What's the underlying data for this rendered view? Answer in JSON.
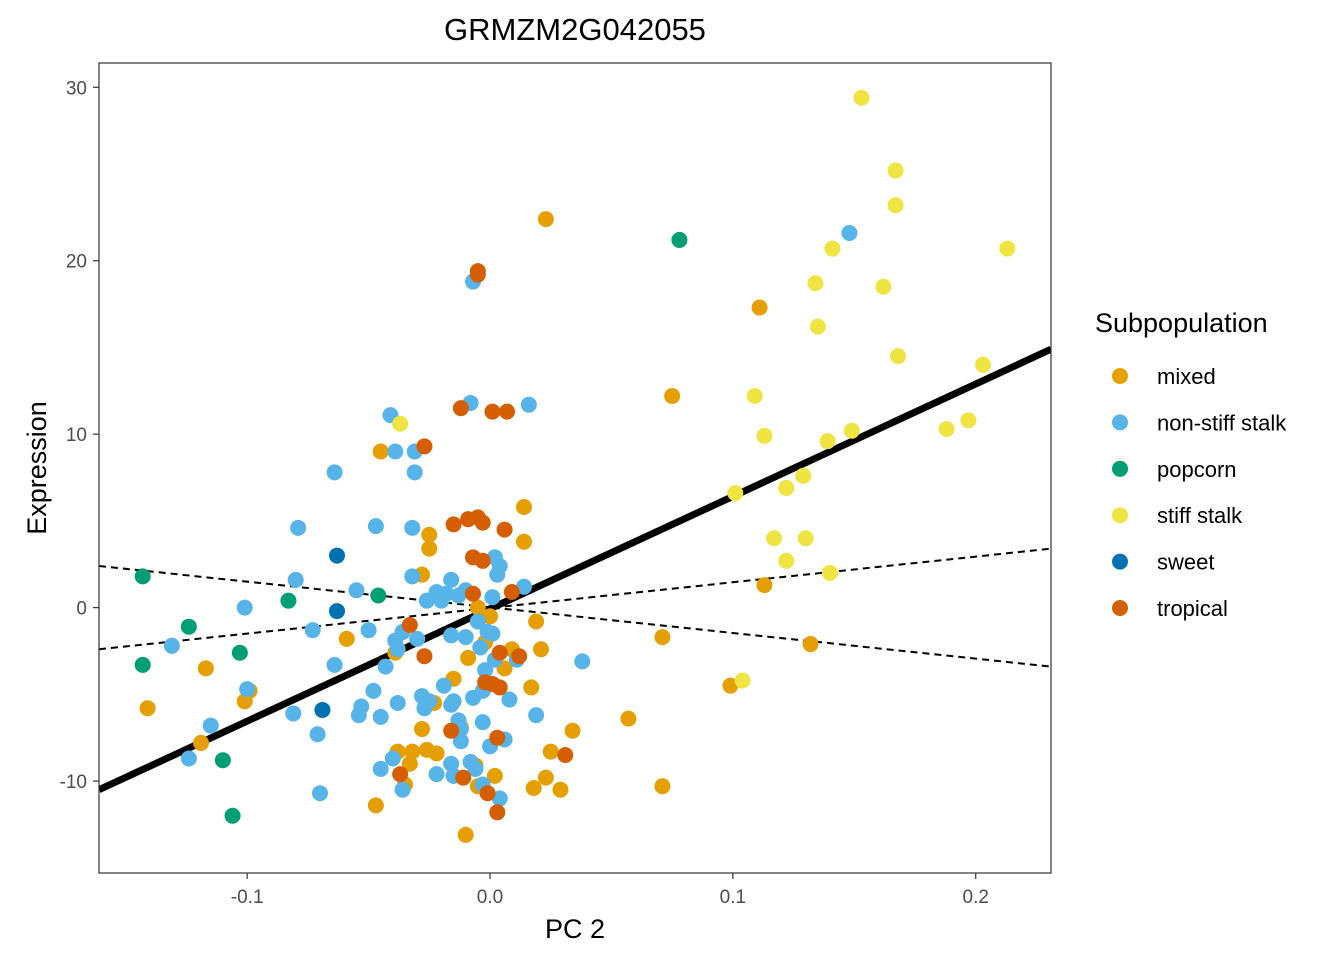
{
  "chart_data": {
    "type": "scatter",
    "title": "GRMZM2G042055",
    "xlabel": "PC 2",
    "ylabel": "Expression",
    "xlim": [
      -0.161,
      0.231
    ],
    "ylim": [
      -15.3,
      31.4
    ],
    "x_ticks": [
      -0.1,
      0.0,
      0.1,
      0.2
    ],
    "x_tick_labels": [
      "-0.1",
      "0.0",
      "0.1",
      "0.2"
    ],
    "y_ticks": [
      -10,
      0,
      10,
      20,
      30
    ],
    "y_tick_labels": [
      "-10",
      "0",
      "10",
      "20",
      "30"
    ],
    "grid": false,
    "legend": {
      "title": "Subpopulation",
      "position": "right",
      "entries": [
        {
          "name": "mixed",
          "color": "#E69F00"
        },
        {
          "name": "non-stiff stalk",
          "color": "#56B4E9"
        },
        {
          "name": "popcorn",
          "color": "#009E73"
        },
        {
          "name": "stiff stalk",
          "color": "#F0E442"
        },
        {
          "name": "sweet",
          "color": "#0072B2"
        },
        {
          "name": "tropical",
          "color": "#D55E00"
        }
      ]
    },
    "fit_line": {
      "x": [
        -0.161,
        0.231
      ],
      "y": [
        -10.5,
        14.9
      ]
    },
    "ci_lines": [
      {
        "x": [
          -0.161,
          0.231
        ],
        "y": [
          2.4,
          -3.4
        ]
      },
      {
        "x": [
          -0.161,
          0.231
        ],
        "y": [
          -2.4,
          3.4
        ]
      }
    ],
    "series": [
      {
        "name": "mixed",
        "color": "#E69F00",
        "points": [
          [
            0.023,
            22.4
          ],
          [
            0.111,
            17.3
          ],
          [
            0.075,
            12.2
          ],
          [
            -0.045,
            9.0
          ],
          [
            0.014,
            5.8
          ],
          [
            -0.025,
            4.2
          ],
          [
            -0.025,
            3.4
          ],
          [
            0.014,
            3.8
          ],
          [
            -0.028,
            1.9
          ],
          [
            -0.117,
            -3.5
          ],
          [
            -0.099,
            -4.8
          ],
          [
            -0.101,
            -5.4
          ],
          [
            -0.141,
            -5.8
          ],
          [
            -0.059,
            -1.8
          ],
          [
            0.019,
            -0.8
          ],
          [
            0.021,
            -2.4
          ],
          [
            0.071,
            -1.7
          ],
          [
            0.113,
            1.3
          ],
          [
            0.132,
            -2.1
          ],
          [
            0.099,
            -4.5
          ],
          [
            0.057,
            -6.4
          ],
          [
            0.071,
            -10.3
          ],
          [
            0.034,
            -7.1
          ],
          [
            0.025,
            -8.3
          ],
          [
            0.023,
            -9.8
          ],
          [
            0.029,
            -10.5
          ],
          [
            0.018,
            -10.4
          ],
          [
            0.017,
            -4.6
          ],
          [
            0.009,
            -2.4
          ],
          [
            0.006,
            -3.5
          ],
          [
            -0.002,
            -2.0
          ],
          [
            -0.009,
            -2.9
          ],
          [
            -0.015,
            -4.1
          ],
          [
            -0.023,
            -5.5
          ],
          [
            -0.028,
            -7.0
          ],
          [
            -0.032,
            -8.3
          ],
          [
            -0.022,
            -8.4
          ],
          [
            -0.026,
            -8.2
          ],
          [
            -0.038,
            -8.3
          ],
          [
            -0.035,
            -10.2
          ],
          [
            -0.047,
            -11.4
          ],
          [
            -0.033,
            -9.0
          ],
          [
            -0.012,
            -6.9
          ],
          [
            -0.006,
            -9.1
          ],
          [
            -0.005,
            -10.3
          ],
          [
            -0.01,
            -13.1
          ],
          [
            0.002,
            -9.7
          ],
          [
            -0.119,
            -7.8
          ],
          [
            -0.039,
            -2.6
          ],
          [
            -0.005,
            0.0
          ],
          [
            0.0,
            -0.5
          ]
        ]
      },
      {
        "name": "non-stiff stalk",
        "color": "#56B4E9",
        "points": [
          [
            0.148,
            21.6
          ],
          [
            -0.007,
            18.8
          ],
          [
            -0.008,
            11.8
          ],
          [
            0.016,
            11.7
          ],
          [
            -0.041,
            11.1
          ],
          [
            -0.039,
            9.0
          ],
          [
            -0.031,
            9.0
          ],
          [
            -0.064,
            7.8
          ],
          [
            -0.031,
            7.8
          ],
          [
            -0.079,
            4.6
          ],
          [
            -0.047,
            4.7
          ],
          [
            -0.032,
            4.6
          ],
          [
            -0.032,
            1.8
          ],
          [
            -0.08,
            1.6
          ],
          [
            -0.055,
            1.0
          ],
          [
            -0.101,
            0.0
          ],
          [
            -0.073,
            -1.3
          ],
          [
            -0.05,
            -1.3
          ],
          [
            -0.039,
            -1.9
          ],
          [
            -0.131,
            -2.2
          ],
          [
            -0.1,
            -4.7
          ],
          [
            -0.081,
            -6.1
          ],
          [
            -0.064,
            -3.3
          ],
          [
            -0.043,
            -3.4
          ],
          [
            -0.048,
            -4.8
          ],
          [
            -0.053,
            -5.7
          ],
          [
            -0.054,
            -6.2
          ],
          [
            -0.071,
            -7.3
          ],
          [
            -0.07,
            -10.7
          ],
          [
            -0.045,
            -9.3
          ],
          [
            -0.04,
            -8.7
          ],
          [
            -0.036,
            -10.5
          ],
          [
            -0.022,
            -9.6
          ],
          [
            -0.015,
            -9.7
          ],
          [
            -0.012,
            -7.0
          ],
          [
            -0.016,
            -5.6
          ],
          [
            -0.019,
            -4.5
          ],
          [
            -0.007,
            -5.2
          ],
          [
            -0.003,
            -6.6
          ],
          [
            -0.006,
            -9.3
          ],
          [
            -0.003,
            -10.2
          ],
          [
            0.004,
            -11.0
          ],
          [
            0.006,
            -7.6
          ],
          [
            0.008,
            -5.3
          ],
          [
            0.019,
            -6.2
          ],
          [
            0.038,
            -3.1
          ],
          [
            0.014,
            1.2
          ],
          [
            0.002,
            2.9
          ],
          [
            0.004,
            2.4
          ],
          [
            0.003,
            1.9
          ],
          [
            0.001,
            0.6
          ],
          [
            -0.01,
            1.0
          ],
          [
            -0.013,
            0.7
          ],
          [
            -0.016,
            1.6
          ],
          [
            -0.018,
            0.8
          ],
          [
            -0.022,
            0.9
          ],
          [
            -0.026,
            0.4
          ],
          [
            -0.036,
            -1.4
          ],
          [
            -0.03,
            -1.8
          ],
          [
            -0.016,
            -1.6
          ],
          [
            -0.01,
            -1.7
          ],
          [
            -0.004,
            -2.3
          ],
          [
            -0.001,
            -1.4
          ],
          [
            -0.002,
            -3.6
          ],
          [
            -0.003,
            -4.8
          ],
          [
            0.002,
            -3.0
          ],
          [
            -0.025,
            -5.4
          ],
          [
            -0.027,
            -5.8
          ],
          [
            -0.015,
            -5.4
          ],
          [
            -0.013,
            -6.5
          ],
          [
            -0.012,
            -7.7
          ],
          [
            0.0,
            -8.0
          ],
          [
            0.001,
            -1.5
          ],
          [
            -0.005,
            -0.8
          ],
          [
            -0.02,
            0.4
          ],
          [
            -0.038,
            -2.4
          ],
          [
            -0.038,
            -5.5
          ],
          [
            -0.028,
            -5.1
          ],
          [
            -0.045,
            -6.3
          ],
          [
            -0.016,
            -9.0
          ],
          [
            -0.008,
            -8.9
          ],
          [
            -0.124,
            -8.7
          ],
          [
            -0.115,
            -6.8
          ],
          [
            0.011,
            -3.0
          ]
        ]
      },
      {
        "name": "popcorn",
        "color": "#009E73",
        "points": [
          [
            0.078,
            21.2
          ],
          [
            -0.143,
            1.8
          ],
          [
            -0.083,
            0.4
          ],
          [
            -0.046,
            0.7
          ],
          [
            -0.124,
            -1.1
          ],
          [
            -0.103,
            -2.6
          ],
          [
            -0.143,
            -3.3
          ],
          [
            -0.11,
            -8.8
          ],
          [
            -0.106,
            -12.0
          ]
        ]
      },
      {
        "name": "stiff stalk",
        "color": "#F0E442",
        "points": [
          [
            0.153,
            29.4
          ],
          [
            0.167,
            25.2
          ],
          [
            0.167,
            23.2
          ],
          [
            0.141,
            20.7
          ],
          [
            0.213,
            20.7
          ],
          [
            0.134,
            18.7
          ],
          [
            0.162,
            18.5
          ],
          [
            0.135,
            16.2
          ],
          [
            0.168,
            14.5
          ],
          [
            0.203,
            14.0
          ],
          [
            0.109,
            12.2
          ],
          [
            0.188,
            10.3
          ],
          [
            0.197,
            10.8
          ],
          [
            0.149,
            10.2
          ],
          [
            0.113,
            9.9
          ],
          [
            0.139,
            9.6
          ],
          [
            0.129,
            7.6
          ],
          [
            0.122,
            6.9
          ],
          [
            0.101,
            6.6
          ],
          [
            0.117,
            4.0
          ],
          [
            0.13,
            4.0
          ],
          [
            0.122,
            2.7
          ],
          [
            0.14,
            2.0
          ],
          [
            0.104,
            -4.2
          ],
          [
            -0.037,
            10.6
          ]
        ]
      },
      {
        "name": "sweet",
        "color": "#0072B2",
        "points": [
          [
            -0.063,
            3.0
          ],
          [
            -0.063,
            -0.2
          ],
          [
            -0.069,
            -5.9
          ]
        ]
      },
      {
        "name": "tropical",
        "color": "#D55E00",
        "points": [
          [
            -0.005,
            19.2
          ],
          [
            -0.005,
            19.4
          ],
          [
            -0.012,
            11.5
          ],
          [
            0.001,
            11.3
          ],
          [
            0.007,
            11.3
          ],
          [
            -0.027,
            9.3
          ],
          [
            -0.015,
            4.8
          ],
          [
            -0.009,
            5.1
          ],
          [
            -0.005,
            5.2
          ],
          [
            -0.003,
            4.9
          ],
          [
            0.006,
            4.5
          ],
          [
            -0.007,
            2.9
          ],
          [
            -0.003,
            2.7
          ],
          [
            0.009,
            0.9
          ],
          [
            -0.007,
            0.8
          ],
          [
            -0.033,
            -1.0
          ],
          [
            -0.027,
            -2.8
          ],
          [
            0.004,
            -2.6
          ],
          [
            0.012,
            -2.8
          ],
          [
            -0.002,
            -4.3
          ],
          [
            0.001,
            -4.4
          ],
          [
            0.004,
            -4.6
          ],
          [
            -0.016,
            -7.1
          ],
          [
            0.003,
            -7.5
          ],
          [
            -0.037,
            -9.6
          ],
          [
            0.031,
            -8.5
          ],
          [
            -0.001,
            -10.7
          ],
          [
            0.003,
            -11.8
          ],
          [
            -0.011,
            -9.8
          ]
        ]
      }
    ]
  }
}
